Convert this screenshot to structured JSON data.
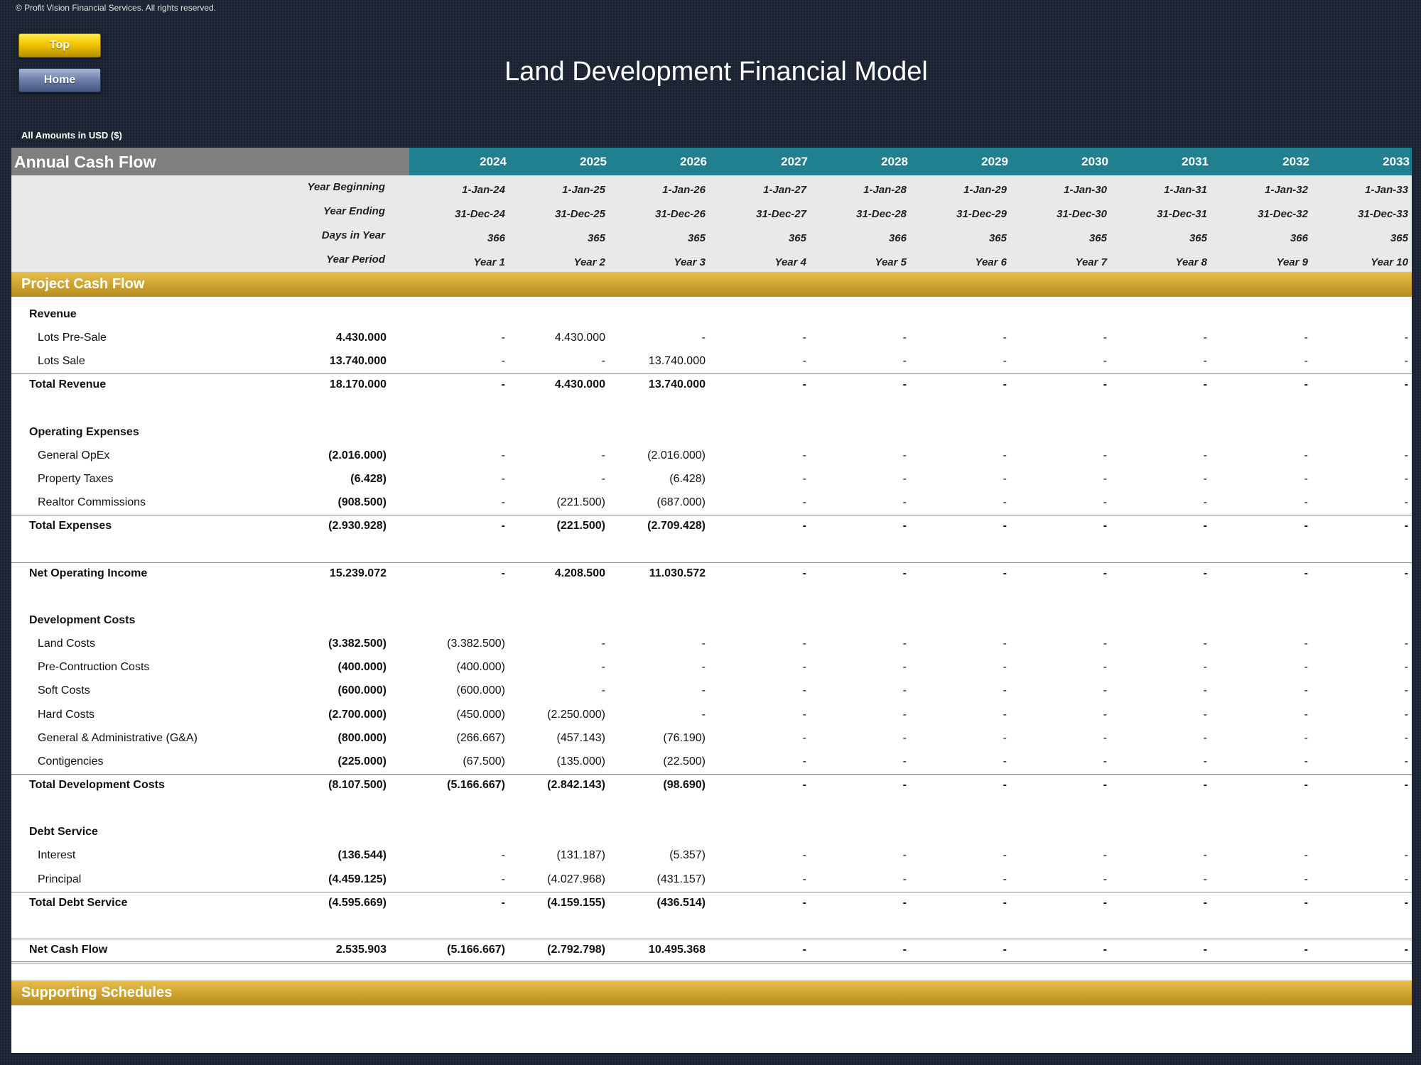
{
  "copyright": "© Profit Vision Financial Services. All rights reserved.",
  "nav": {
    "top_label": "Top",
    "home_label": "Home"
  },
  "title": "Land Development Financial Model",
  "units_note": "All Amounts in  USD ($)",
  "sheet": {
    "header_title": "Annual Cash Flow",
    "years": [
      "2024",
      "2025",
      "2026",
      "2027",
      "2028",
      "2029",
      "2030",
      "2031",
      "2032",
      "2033"
    ],
    "meta_rows": [
      {
        "label": "Year Beginning",
        "values": [
          "1-Jan-24",
          "1-Jan-25",
          "1-Jan-26",
          "1-Jan-27",
          "1-Jan-28",
          "1-Jan-29",
          "1-Jan-30",
          "1-Jan-31",
          "1-Jan-32",
          "1-Jan-33"
        ]
      },
      {
        "label": "Year Ending",
        "values": [
          "31-Dec-24",
          "31-Dec-25",
          "31-Dec-26",
          "31-Dec-27",
          "31-Dec-28",
          "31-Dec-29",
          "31-Dec-30",
          "31-Dec-31",
          "31-Dec-32",
          "31-Dec-33"
        ]
      },
      {
        "label": "Days in Year",
        "values": [
          "366",
          "365",
          "365",
          "365",
          "366",
          "365",
          "365",
          "365",
          "366",
          "365"
        ]
      },
      {
        "label": "Year Period",
        "values": [
          "Year 1",
          "Year 2",
          "Year 3",
          "Year 4",
          "Year 5",
          "Year 6",
          "Year 7",
          "Year 8",
          "Year 9",
          "Year 10"
        ]
      }
    ],
    "project_section": "Project Cash Flow",
    "supporting_section": "Supporting Schedules",
    "rows": [
      {
        "type": "group",
        "label": "Revenue"
      },
      {
        "type": "item",
        "label": "Lots Pre-Sale",
        "total": "4.430.000",
        "values": [
          "-",
          "4.430.000",
          "-",
          "-",
          "-",
          "-",
          "-",
          "-",
          "-",
          "-"
        ]
      },
      {
        "type": "item",
        "label": "Lots Sale",
        "total": "13.740.000",
        "values": [
          "-",
          "-",
          "13.740.000",
          "-",
          "-",
          "-",
          "-",
          "-",
          "-",
          "-"
        ],
        "line_after": true
      },
      {
        "type": "total",
        "label": "Total Revenue",
        "total": "18.170.000",
        "values": [
          "-",
          "4.430.000",
          "13.740.000",
          "-",
          "-",
          "-",
          "-",
          "-",
          "-",
          "-"
        ]
      },
      {
        "type": "blank"
      },
      {
        "type": "group",
        "label": "Operating Expenses"
      },
      {
        "type": "item",
        "label": "General OpEx",
        "total": "(2.016.000)",
        "values": [
          "-",
          "-",
          "(2.016.000)",
          "-",
          "-",
          "-",
          "-",
          "-",
          "-",
          "-"
        ]
      },
      {
        "type": "item",
        "label": "Property Taxes",
        "total": "(6.428)",
        "values": [
          "-",
          "-",
          "(6.428)",
          "-",
          "-",
          "-",
          "-",
          "-",
          "-",
          "-"
        ]
      },
      {
        "type": "item",
        "label": "Realtor Commissions",
        "total": "(908.500)",
        "values": [
          "-",
          "(221.500)",
          "(687.000)",
          "-",
          "-",
          "-",
          "-",
          "-",
          "-",
          "-"
        ],
        "line_after": true
      },
      {
        "type": "total",
        "label": "Total Expenses",
        "total": "(2.930.928)",
        "values": [
          "-",
          "(221.500)",
          "(2.709.428)",
          "-",
          "-",
          "-",
          "-",
          "-",
          "-",
          "-"
        ]
      },
      {
        "type": "blank",
        "line_after": true
      },
      {
        "type": "total",
        "label": "Net Operating Income",
        "total": "15.239.072",
        "values": [
          "-",
          "4.208.500",
          "11.030.572",
          "-",
          "-",
          "-",
          "-",
          "-",
          "-",
          "-"
        ]
      },
      {
        "type": "blank"
      },
      {
        "type": "group",
        "label": "Development Costs"
      },
      {
        "type": "item",
        "label": "Land Costs",
        "total": "(3.382.500)",
        "values": [
          "(3.382.500)",
          "-",
          "-",
          "-",
          "-",
          "-",
          "-",
          "-",
          "-",
          "-"
        ]
      },
      {
        "type": "item",
        "label": "Pre-Contruction Costs",
        "total": "(400.000)",
        "values": [
          "(400.000)",
          "-",
          "-",
          "-",
          "-",
          "-",
          "-",
          "-",
          "-",
          "-"
        ]
      },
      {
        "type": "item",
        "label": "Soft Costs",
        "total": "(600.000)",
        "values": [
          "(600.000)",
          "-",
          "-",
          "-",
          "-",
          "-",
          "-",
          "-",
          "-",
          "-"
        ]
      },
      {
        "type": "item",
        "label": "Hard Costs",
        "total": "(2.700.000)",
        "values": [
          "(450.000)",
          "(2.250.000)",
          "-",
          "-",
          "-",
          "-",
          "-",
          "-",
          "-",
          "-"
        ]
      },
      {
        "type": "item",
        "label": "General & Administrative (G&A)",
        "total": "(800.000)",
        "values": [
          "(266.667)",
          "(457.143)",
          "(76.190)",
          "-",
          "-",
          "-",
          "-",
          "-",
          "-",
          "-"
        ]
      },
      {
        "type": "item",
        "label": "Contigencies",
        "total": "(225.000)",
        "values": [
          "(67.500)",
          "(135.000)",
          "(22.500)",
          "-",
          "-",
          "-",
          "-",
          "-",
          "-",
          "-"
        ],
        "line_after": true
      },
      {
        "type": "total",
        "label": "Total Development Costs",
        "total": "(8.107.500)",
        "values": [
          "(5.166.667)",
          "(2.842.143)",
          "(98.690)",
          "-",
          "-",
          "-",
          "-",
          "-",
          "-",
          "-"
        ]
      },
      {
        "type": "blank"
      },
      {
        "type": "group",
        "label": "Debt Service"
      },
      {
        "type": "item",
        "label": "Interest",
        "total": "(136.544)",
        "values": [
          "-",
          "(131.187)",
          "(5.357)",
          "-",
          "-",
          "-",
          "-",
          "-",
          "-",
          "-"
        ]
      },
      {
        "type": "item",
        "label": "Principal",
        "total": "(4.459.125)",
        "values": [
          "-",
          "(4.027.968)",
          "(431.157)",
          "-",
          "-",
          "-",
          "-",
          "-",
          "-",
          "-"
        ],
        "line_after": true
      },
      {
        "type": "total",
        "label": "Total Debt Service",
        "total": "(4.595.669)",
        "values": [
          "-",
          "(4.159.155)",
          "(436.514)",
          "-",
          "-",
          "-",
          "-",
          "-",
          "-",
          "-"
        ]
      },
      {
        "type": "blank",
        "line_after": true
      },
      {
        "type": "total",
        "label": "Net Cash Flow",
        "total": "2.535.903",
        "values": [
          "(5.166.667)",
          "(2.792.798)",
          "10.495.368",
          "-",
          "-",
          "-",
          "-",
          "-",
          "-",
          "-"
        ],
        "double_after": true
      }
    ]
  }
}
